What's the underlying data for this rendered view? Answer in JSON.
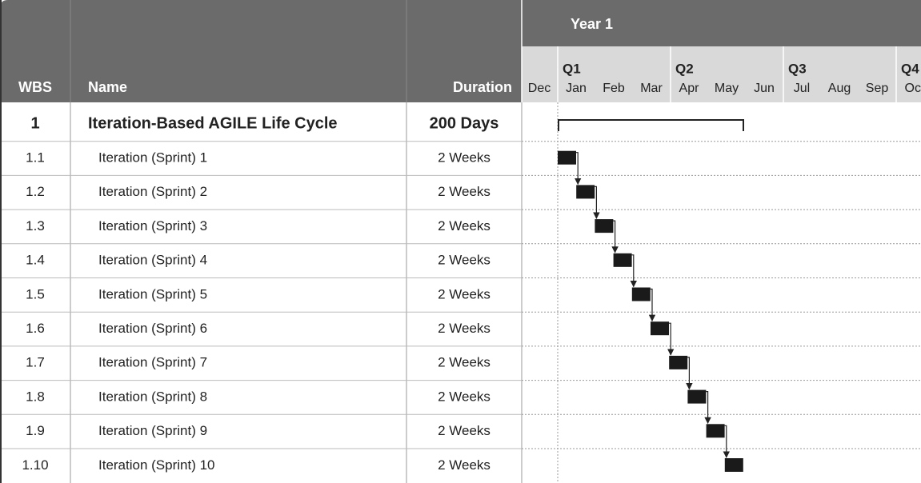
{
  "header": {
    "wbs": "WBS",
    "name": "Name",
    "duration": "Duration",
    "year": "Year 1",
    "quarters": [
      "Q1",
      "Q2",
      "Q3",
      "Q4"
    ],
    "months": [
      "Dec",
      "Jan",
      "Feb",
      "Mar",
      "Apr",
      "May",
      "Jun",
      "Jul",
      "Aug",
      "Sep",
      "Oct"
    ]
  },
  "rows": [
    {
      "wbs": "1",
      "name": "Iteration-Based AGILE Life Cycle",
      "duration": "200 Days"
    },
    {
      "wbs": "1.1",
      "name": "Iteration (Sprint) 1",
      "duration": "2 Weeks"
    },
    {
      "wbs": "1.2",
      "name": "Iteration (Sprint) 2",
      "duration": "2 Weeks"
    },
    {
      "wbs": "1.3",
      "name": "Iteration (Sprint) 3",
      "duration": "2 Weeks"
    },
    {
      "wbs": "1.4",
      "name": "Iteration (Sprint) 4",
      "duration": "2 Weeks"
    },
    {
      "wbs": "1.5",
      "name": "Iteration (Sprint) 5",
      "duration": "2 Weeks"
    },
    {
      "wbs": "1.6",
      "name": "Iteration (Sprint) 6",
      "duration": "2 Weeks"
    },
    {
      "wbs": "1.7",
      "name": "Iteration (Sprint) 7",
      "duration": "2 Weeks"
    },
    {
      "wbs": "1.8",
      "name": "Iteration (Sprint) 8",
      "duration": "2 Weeks"
    },
    {
      "wbs": "1.9",
      "name": "Iteration (Sprint) 9",
      "duration": "2 Weeks"
    },
    {
      "wbs": "1.10",
      "name": "Iteration (Sprint) 10",
      "duration": "2 Weeks"
    }
  ]
}
